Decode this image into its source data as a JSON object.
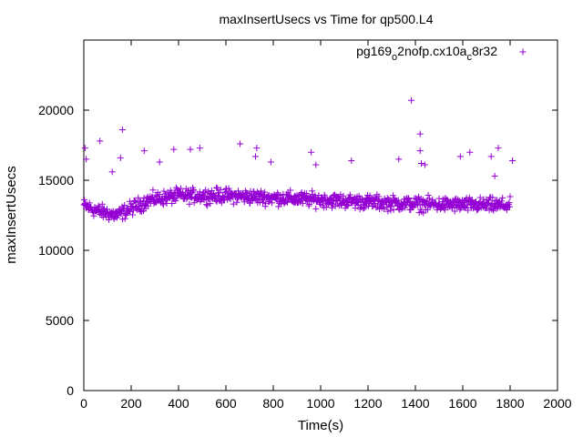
{
  "chart_data": {
    "type": "scatter",
    "title": "maxInsertUsecs vs Time for qp500.L4",
    "xlabel": "Time(s)",
    "ylabel": "maxInsertUsecs",
    "xlim": [
      0,
      2000
    ],
    "ylim": [
      0,
      25000
    ],
    "x_ticks": [
      "0",
      "200",
      "400",
      "600",
      "800",
      "1000",
      "1200",
      "1400",
      "1600",
      "1800",
      "2000"
    ],
    "y_ticks": [
      "0",
      "5000",
      "10000",
      "15000",
      "20000"
    ],
    "marker": "+",
    "legend_position": "top-right",
    "series": [
      {
        "name_parts": [
          "pg169",
          "o",
          "2nofp.cx10a",
          "c",
          "8r32"
        ],
        "color": "#9400d3",
        "trend": [
          [
            0,
            13200
          ],
          [
            60,
            12800
          ],
          [
            140,
            12500
          ],
          [
            200,
            13000
          ],
          [
            280,
            13600
          ],
          [
            400,
            13900
          ],
          [
            600,
            13900
          ],
          [
            1000,
            13600
          ],
          [
            1400,
            13300
          ],
          [
            1800,
            13200
          ]
        ],
        "spread": 1500,
        "x_range": [
          0,
          1800
        ],
        "outliers": [
          {
            "x": 1383,
            "y": 20700
          },
          {
            "x": 1420,
            "y": 18300
          },
          {
            "x": 163,
            "y": 18600
          },
          {
            "x": 68,
            "y": 17800
          },
          {
            "x": 660,
            "y": 17600
          },
          {
            "x": 255,
            "y": 17100
          },
          {
            "x": 380,
            "y": 17200
          },
          {
            "x": 450,
            "y": 17200
          },
          {
            "x": 490,
            "y": 17300
          },
          {
            "x": 730,
            "y": 17300
          },
          {
            "x": 960,
            "y": 17000
          },
          {
            "x": 1630,
            "y": 17000
          },
          {
            "x": 1420,
            "y": 17100
          },
          {
            "x": 1750,
            "y": 17300
          },
          {
            "x": 5,
            "y": 17300
          },
          {
            "x": 320,
            "y": 16300
          },
          {
            "x": 1130,
            "y": 16400
          },
          {
            "x": 1330,
            "y": 16500
          },
          {
            "x": 1590,
            "y": 16700
          },
          {
            "x": 1720,
            "y": 16700
          },
          {
            "x": 1810,
            "y": 16400
          },
          {
            "x": 10,
            "y": 16500
          },
          {
            "x": 725,
            "y": 16700
          },
          {
            "x": 790,
            "y": 16300
          },
          {
            "x": 980,
            "y": 16100
          },
          {
            "x": 120,
            "y": 15600
          },
          {
            "x": 155,
            "y": 16600
          },
          {
            "x": 1735,
            "y": 15300
          },
          {
            "x": 1425,
            "y": 16200
          },
          {
            "x": 1440,
            "y": 16100
          }
        ]
      }
    ]
  }
}
